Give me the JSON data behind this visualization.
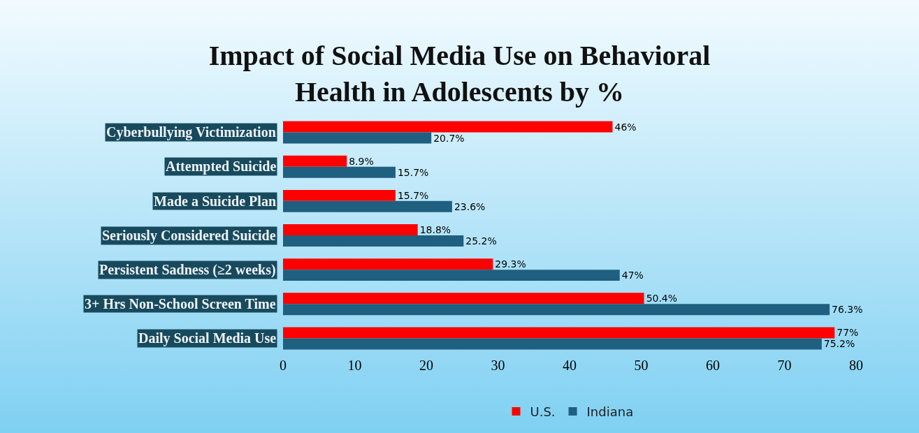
{
  "chart_data": {
    "type": "bar",
    "orientation": "horizontal",
    "title": "Impact of Social Media Use on Behavioral\nHealth in Adolescents by %",
    "categories": [
      "Cyberbullying Victimization",
      "Attempted Suicide",
      "Made a Suicide Plan",
      "Seriously Considered Suicide",
      "Persistent Sadness (≥2 weeks)",
      "3+ Hrs Non-School Screen Time",
      "Daily Social Media Use"
    ],
    "series": [
      {
        "name": "U.S.",
        "color": "#ff0000",
        "values": [
          46,
          8.9,
          15.7,
          18.8,
          29.3,
          50.4,
          77
        ],
        "value_labels": [
          "46%",
          "8.9%",
          "15.7%",
          "18.8%",
          "29.3%",
          "50.4%",
          "77%"
        ]
      },
      {
        "name": "Indiana",
        "color": "#1f5f7f",
        "values": [
          20.7,
          15.7,
          23.6,
          25.2,
          47,
          76.3,
          75.2
        ],
        "value_labels": [
          "20.7%",
          "15.7%",
          "23.6%",
          "25.2%",
          "47%",
          "76.3%",
          "75.2%"
        ]
      }
    ],
    "xlim": [
      0,
      80
    ],
    "xticks": [
      0,
      10,
      20,
      30,
      40,
      50,
      60,
      70,
      80
    ],
    "grid": false,
    "legend": "bottom"
  }
}
